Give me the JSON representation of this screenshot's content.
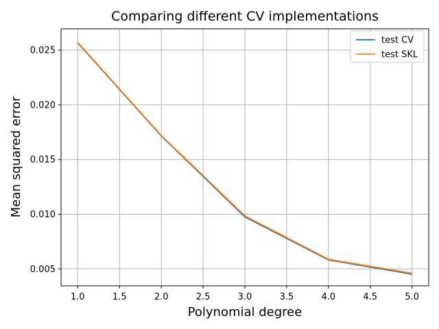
{
  "chart_data": {
    "type": "line",
    "title": "Comparing different CV implementations",
    "xlabel": "Polynomial degree",
    "ylabel": "Mean squared error",
    "x": [
      1,
      2,
      3,
      4,
      5
    ],
    "xlim": [
      0.8,
      5.2
    ],
    "ylim": [
      0.00345,
      0.02695
    ],
    "xticks": [
      1.0,
      1.5,
      2.0,
      2.5,
      3.0,
      3.5,
      4.0,
      4.5,
      5.0
    ],
    "xtick_labels": [
      "1.0",
      "1.5",
      "2.0",
      "2.5",
      "3.0",
      "3.5",
      "4.0",
      "4.5",
      "5.0"
    ],
    "yticks": [
      0.005,
      0.01,
      0.015,
      0.02,
      0.025
    ],
    "ytick_labels": [
      "0.005",
      "0.010",
      "0.015",
      "0.020",
      "0.025"
    ],
    "grid": true,
    "legend_position": "top-right",
    "series": [
      {
        "name": "test CV",
        "color": "#1f77b4",
        "values": [
          0.02565,
          0.01715,
          0.00975,
          0.00582,
          0.00452
        ]
      },
      {
        "name": "test SKL",
        "color": "#ff7f0e",
        "values": [
          0.0257,
          0.0172,
          0.00985,
          0.00588,
          0.0046
        ]
      }
    ]
  }
}
